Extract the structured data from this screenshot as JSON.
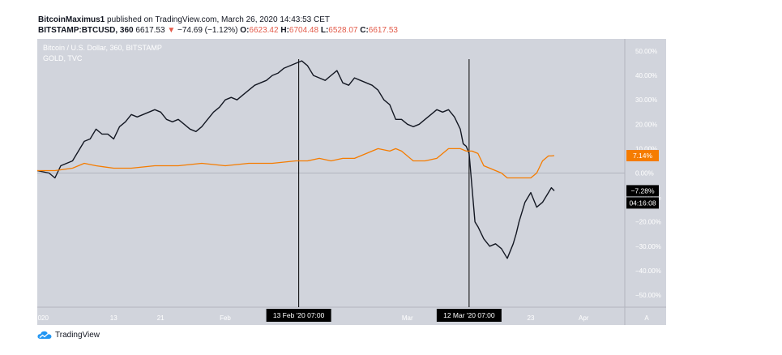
{
  "header": {
    "author": "BitcoinMaximus1",
    "published": "published on TradingView.com, March 26, 2020 14:43:53 CET",
    "symbol": "BITSTAMP:BTCUSD, 360",
    "last": "6617.53",
    "change": "−74.69 (−1.12%)",
    "o_label": "O:",
    "o_val": "6623.42",
    "h_label": "H:",
    "h_val": "6704.48",
    "l_label": "L:",
    "l_val": "6528.07",
    "c_label": "C:",
    "c_val": "6617.53",
    "down_arrow_icon": "triangle-down-icon"
  },
  "legend": {
    "main": "Bitcoin / U.S. Dollar, 360, BITSTAMP",
    "compare": "GOLD, TVC"
  },
  "footer": {
    "brand": "TradingView",
    "logo_icon": "tradingview-cloud-icon"
  },
  "colors": {
    "background": "#d1d4dc",
    "btc": "#131722",
    "gold": "#f57c00",
    "axis_text": "#ffffff",
    "marker": "#000000"
  },
  "chart_data": {
    "type": "line",
    "yunit": "percent change",
    "ylim": [
      -55,
      55
    ],
    "xlim": [
      0,
      1
    ],
    "grid": false,
    "legend_position": "top-left",
    "ytick_labels": [
      "50.00%",
      "40.00%",
      "30.00%",
      "20.00%",
      "10.00%",
      "0.00%",
      "−10.00%",
      "−20.00%",
      "−30.00%",
      "−40.00%",
      "−50.00%"
    ],
    "ytick_values": [
      50,
      40,
      30,
      20,
      10,
      0,
      -10,
      -20,
      -30,
      -40,
      -50
    ],
    "xtick_labels": [
      "020",
      "13",
      "21",
      "Feb",
      "Mar",
      "23",
      "Apr"
    ],
    "xtick_pos": [
      0.01,
      0.13,
      0.21,
      0.32,
      0.63,
      0.84,
      0.93
    ],
    "axis_corner": "A",
    "crosshair_labels": [
      {
        "label": "13 Feb '20   07:00",
        "x": 0.445
      },
      {
        "label": "12 Mar '20   07:00",
        "x": 0.735
      }
    ],
    "series": [
      {
        "name": "Bitcoin / U.S. Dollar, 360, BITSTAMP",
        "x": [
          0.0,
          0.02,
          0.03,
          0.04,
          0.06,
          0.08,
          0.09,
          0.1,
          0.11,
          0.12,
          0.13,
          0.14,
          0.15,
          0.16,
          0.17,
          0.19,
          0.2,
          0.21,
          0.22,
          0.23,
          0.24,
          0.25,
          0.26,
          0.27,
          0.28,
          0.29,
          0.3,
          0.31,
          0.32,
          0.33,
          0.34,
          0.35,
          0.36,
          0.37,
          0.38,
          0.39,
          0.4,
          0.41,
          0.42,
          0.43,
          0.44,
          0.45,
          0.46,
          0.47,
          0.48,
          0.49,
          0.5,
          0.51,
          0.52,
          0.53,
          0.54,
          0.55,
          0.56,
          0.57,
          0.58,
          0.59,
          0.6,
          0.61,
          0.62,
          0.63,
          0.64,
          0.65,
          0.66,
          0.67,
          0.68,
          0.69,
          0.7,
          0.71,
          0.72,
          0.725,
          0.73,
          0.735,
          0.74,
          0.745,
          0.75,
          0.76,
          0.77,
          0.78,
          0.79,
          0.8,
          0.81,
          0.815,
          0.82,
          0.83,
          0.84,
          0.85,
          0.86,
          0.87,
          0.875,
          0.88
        ],
        "y": [
          1,
          0,
          -2,
          3,
          5,
          13,
          14,
          18,
          16,
          16,
          14,
          19,
          21,
          24,
          23,
          25,
          26,
          25,
          22,
          21,
          22,
          20,
          18,
          17,
          19,
          22,
          25,
          27,
          30,
          31,
          30,
          32,
          34,
          36,
          37,
          38,
          40,
          41,
          43,
          44,
          45,
          46,
          44,
          40,
          39,
          38,
          40,
          42,
          37,
          36,
          39,
          38,
          37,
          36,
          34,
          30,
          28,
          22,
          22,
          20,
          19,
          20,
          22,
          24,
          26,
          25,
          26,
          23,
          18,
          12,
          11,
          8,
          -6,
          -20,
          -22,
          -27,
          -30,
          -29,
          -31,
          -35,
          -29,
          -25,
          -20,
          -12,
          -8,
          -14,
          -12,
          -8,
          -6,
          -7.28
        ]
      },
      {
        "name": "GOLD, TVC",
        "x": [
          0.0,
          0.03,
          0.06,
          0.08,
          0.1,
          0.13,
          0.16,
          0.2,
          0.24,
          0.28,
          0.32,
          0.36,
          0.4,
          0.44,
          0.46,
          0.48,
          0.5,
          0.52,
          0.54,
          0.56,
          0.57,
          0.58,
          0.6,
          0.61,
          0.62,
          0.64,
          0.66,
          0.68,
          0.7,
          0.72,
          0.73,
          0.74,
          0.75,
          0.76,
          0.77,
          0.78,
          0.79,
          0.8,
          0.82,
          0.84,
          0.85,
          0.86,
          0.87,
          0.875,
          0.88
        ],
        "y": [
          1,
          1,
          2,
          4,
          3,
          2,
          2,
          3,
          3,
          4,
          3,
          4,
          4,
          5,
          5,
          6,
          5,
          6,
          6,
          8,
          9,
          10,
          9,
          10,
          9,
          5,
          5,
          6,
          10,
          10,
          9,
          9,
          8,
          3,
          2,
          1,
          0,
          -2,
          -2,
          -2,
          0,
          5,
          7,
          7,
          7.14
        ]
      }
    ],
    "last_value_labels": [
      {
        "series": "GOLD, TVC",
        "label": "7.14%",
        "y": 7.14
      },
      {
        "series": "Bitcoin / U.S. Dollar, 360, BITSTAMP",
        "label": "−7.28%",
        "y": -7.28
      }
    ],
    "countdown_label": "04:16:08"
  }
}
